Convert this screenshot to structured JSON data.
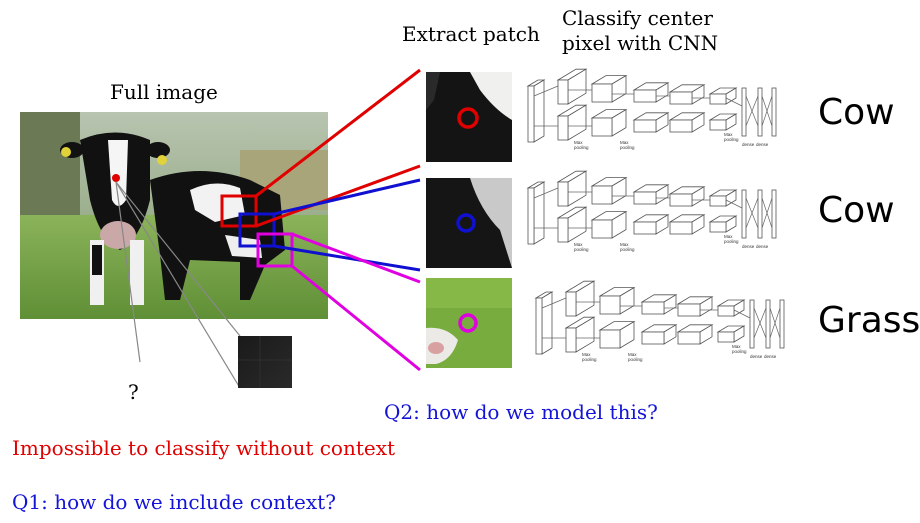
{
  "titles": {
    "full_image": "Full image",
    "extract_patch": "Extract patch",
    "classify_line1": "Classify center",
    "classify_line2": "pixel with CNN"
  },
  "classes": [
    {
      "label": "Cow",
      "color": "#e00000"
    },
    {
      "label": "Cow",
      "color": "#1010d0"
    },
    {
      "label": "Grass",
      "color": "#e000e0"
    }
  ],
  "question_mark": "?",
  "q2": "Q2: how do we model this?",
  "impossible": "Impossible to classify without context",
  "q1": "Q1: how do we include context?",
  "cnn_labels": {
    "max_pooling": "Max\npooling",
    "dense": "dense"
  },
  "colors": {
    "red": "#e00000",
    "blue": "#1010d0",
    "magenta": "#e000e0",
    "question_blue": "#1414d8"
  }
}
